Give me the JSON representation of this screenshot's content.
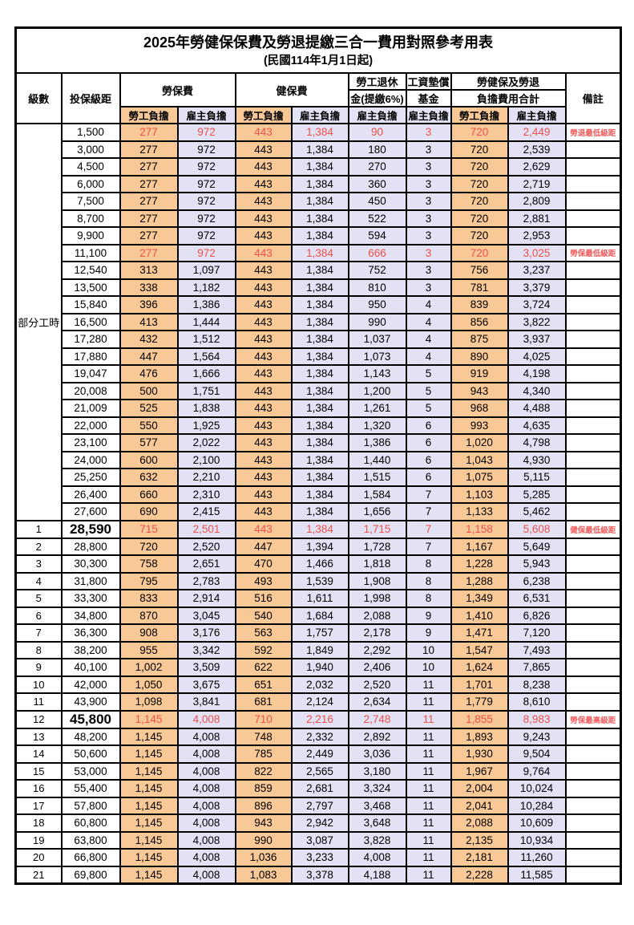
{
  "title": "2025年勞健保保費及勞退提繳三合一費用對照參考用表",
  "subtitle": "(民國114年1月1日起)",
  "columns": {
    "level": "級數",
    "bracket": "投保級距",
    "labor_insurance": "勞保費",
    "health_insurance": "健保費",
    "pension_line1": "勞工退休",
    "pension_line2": "金(提繳6%)",
    "wage_fund_line1": "工資墊償",
    "wage_fund_line2": "基金",
    "total_line1": "勞健保及勞退",
    "total_line2": "負擔費用合計",
    "employee_label": "勞工負擔",
    "employer_label": "雇主負擔",
    "note": "備註"
  },
  "part_time_label": "部分工時",
  "part_time_rowspan": 23,
  "colors": {
    "employee_bg": "#F8C896",
    "employer_bg": "#E2E2F4",
    "highlight_red": "#EE504B",
    "note_red": "#F25B5B"
  },
  "rows": [
    {
      "level": "",
      "bracket": "1,500",
      "values": [
        "277",
        "972",
        "443",
        "1,384",
        "90",
        "3",
        "720",
        "2,449"
      ],
      "note": "勞退最低級距",
      "red": true,
      "big": false
    },
    {
      "level": "",
      "bracket": "3,000",
      "values": [
        "277",
        "972",
        "443",
        "1,384",
        "180",
        "3",
        "720",
        "2,539"
      ],
      "note": "",
      "red": false,
      "big": false
    },
    {
      "level": "",
      "bracket": "4,500",
      "values": [
        "277",
        "972",
        "443",
        "1,384",
        "270",
        "3",
        "720",
        "2,629"
      ],
      "note": "",
      "red": false,
      "big": false
    },
    {
      "level": "",
      "bracket": "6,000",
      "values": [
        "277",
        "972",
        "443",
        "1,384",
        "360",
        "3",
        "720",
        "2,719"
      ],
      "note": "",
      "red": false,
      "big": false
    },
    {
      "level": "",
      "bracket": "7,500",
      "values": [
        "277",
        "972",
        "443",
        "1,384",
        "450",
        "3",
        "720",
        "2,809"
      ],
      "note": "",
      "red": false,
      "big": false
    },
    {
      "level": "",
      "bracket": "8,700",
      "values": [
        "277",
        "972",
        "443",
        "1,384",
        "522",
        "3",
        "720",
        "2,881"
      ],
      "note": "",
      "red": false,
      "big": false
    },
    {
      "level": "",
      "bracket": "9,900",
      "values": [
        "277",
        "972",
        "443",
        "1,384",
        "594",
        "3",
        "720",
        "2,953"
      ],
      "note": "",
      "red": false,
      "big": false
    },
    {
      "level": "",
      "bracket": "11,100",
      "values": [
        "277",
        "972",
        "443",
        "1,384",
        "666",
        "3",
        "720",
        "3,025"
      ],
      "note": "勞保最低級距",
      "red": true,
      "big": false
    },
    {
      "level": "",
      "bracket": "12,540",
      "values": [
        "313",
        "1,097",
        "443",
        "1,384",
        "752",
        "3",
        "756",
        "3,237"
      ],
      "note": "",
      "red": false,
      "big": false
    },
    {
      "level": "",
      "bracket": "13,500",
      "values": [
        "338",
        "1,182",
        "443",
        "1,384",
        "810",
        "3",
        "781",
        "3,379"
      ],
      "note": "",
      "red": false,
      "big": false
    },
    {
      "level": "",
      "bracket": "15,840",
      "values": [
        "396",
        "1,386",
        "443",
        "1,384",
        "950",
        "4",
        "839",
        "3,724"
      ],
      "note": "",
      "red": false,
      "big": false
    },
    {
      "level": "",
      "bracket": "16,500",
      "values": [
        "413",
        "1,444",
        "443",
        "1,384",
        "990",
        "4",
        "856",
        "3,822"
      ],
      "note": "",
      "red": false,
      "big": false
    },
    {
      "level": "",
      "bracket": "17,280",
      "values": [
        "432",
        "1,512",
        "443",
        "1,384",
        "1,037",
        "4",
        "875",
        "3,937"
      ],
      "note": "",
      "red": false,
      "big": false
    },
    {
      "level": "",
      "bracket": "17,880",
      "values": [
        "447",
        "1,564",
        "443",
        "1,384",
        "1,073",
        "4",
        "890",
        "4,025"
      ],
      "note": "",
      "red": false,
      "big": false
    },
    {
      "level": "",
      "bracket": "19,047",
      "values": [
        "476",
        "1,666",
        "443",
        "1,384",
        "1,143",
        "5",
        "919",
        "4,198"
      ],
      "note": "",
      "red": false,
      "big": false
    },
    {
      "level": "",
      "bracket": "20,008",
      "values": [
        "500",
        "1,751",
        "443",
        "1,384",
        "1,200",
        "5",
        "943",
        "4,340"
      ],
      "note": "",
      "red": false,
      "big": false
    },
    {
      "level": "",
      "bracket": "21,009",
      "values": [
        "525",
        "1,838",
        "443",
        "1,384",
        "1,261",
        "5",
        "968",
        "4,488"
      ],
      "note": "",
      "red": false,
      "big": false
    },
    {
      "level": "",
      "bracket": "22,000",
      "values": [
        "550",
        "1,925",
        "443",
        "1,384",
        "1,320",
        "6",
        "993",
        "4,635"
      ],
      "note": "",
      "red": false,
      "big": false
    },
    {
      "level": "",
      "bracket": "23,100",
      "values": [
        "577",
        "2,022",
        "443",
        "1,384",
        "1,386",
        "6",
        "1,020",
        "4,798"
      ],
      "note": "",
      "red": false,
      "big": false
    },
    {
      "level": "",
      "bracket": "24,000",
      "values": [
        "600",
        "2,100",
        "443",
        "1,384",
        "1,440",
        "6",
        "1,043",
        "4,930"
      ],
      "note": "",
      "red": false,
      "big": false
    },
    {
      "level": "",
      "bracket": "25,250",
      "values": [
        "632",
        "2,210",
        "443",
        "1,384",
        "1,515",
        "6",
        "1,075",
        "5,115"
      ],
      "note": "",
      "red": false,
      "big": false
    },
    {
      "level": "",
      "bracket": "26,400",
      "values": [
        "660",
        "2,310",
        "443",
        "1,384",
        "1,584",
        "7",
        "1,103",
        "5,285"
      ],
      "note": "",
      "red": false,
      "big": false
    },
    {
      "level": "",
      "bracket": "27,600",
      "values": [
        "690",
        "2,415",
        "443",
        "1,384",
        "1,656",
        "7",
        "1,133",
        "5,462"
      ],
      "note": "",
      "red": false,
      "big": false
    },
    {
      "level": "1",
      "bracket": "28,590",
      "values": [
        "715",
        "2,501",
        "443",
        "1,384",
        "1,715",
        "7",
        "1,158",
        "5,608"
      ],
      "note": "健保最低級距",
      "red": true,
      "big": true
    },
    {
      "level": "2",
      "bracket": "28,800",
      "values": [
        "720",
        "2,520",
        "447",
        "1,394",
        "1,728",
        "7",
        "1,167",
        "5,649"
      ],
      "note": "",
      "red": false,
      "big": false
    },
    {
      "level": "3",
      "bracket": "30,300",
      "values": [
        "758",
        "2,651",
        "470",
        "1,466",
        "1,818",
        "8",
        "1,228",
        "5,943"
      ],
      "note": "",
      "red": false,
      "big": false
    },
    {
      "level": "4",
      "bracket": "31,800",
      "values": [
        "795",
        "2,783",
        "493",
        "1,539",
        "1,908",
        "8",
        "1,288",
        "6,238"
      ],
      "note": "",
      "red": false,
      "big": false
    },
    {
      "level": "5",
      "bracket": "33,300",
      "values": [
        "833",
        "2,914",
        "516",
        "1,611",
        "1,998",
        "8",
        "1,349",
        "6,531"
      ],
      "note": "",
      "red": false,
      "big": false
    },
    {
      "level": "6",
      "bracket": "34,800",
      "values": [
        "870",
        "3,045",
        "540",
        "1,684",
        "2,088",
        "9",
        "1,410",
        "6,826"
      ],
      "note": "",
      "red": false,
      "big": false
    },
    {
      "level": "7",
      "bracket": "36,300",
      "values": [
        "908",
        "3,176",
        "563",
        "1,757",
        "2,178",
        "9",
        "1,471",
        "7,120"
      ],
      "note": "",
      "red": false,
      "big": false
    },
    {
      "level": "8",
      "bracket": "38,200",
      "values": [
        "955",
        "3,342",
        "592",
        "1,849",
        "2,292",
        "10",
        "1,547",
        "7,493"
      ],
      "note": "",
      "red": false,
      "big": false
    },
    {
      "level": "9",
      "bracket": "40,100",
      "values": [
        "1,002",
        "3,509",
        "622",
        "1,940",
        "2,406",
        "10",
        "1,624",
        "7,865"
      ],
      "note": "",
      "red": false,
      "big": false
    },
    {
      "level": "10",
      "bracket": "42,000",
      "values": [
        "1,050",
        "3,675",
        "651",
        "2,032",
        "2,520",
        "11",
        "1,701",
        "8,238"
      ],
      "note": "",
      "red": false,
      "big": false
    },
    {
      "level": "11",
      "bracket": "43,900",
      "values": [
        "1,098",
        "3,841",
        "681",
        "2,124",
        "2,634",
        "11",
        "1,779",
        "8,610"
      ],
      "note": "",
      "red": false,
      "big": false
    },
    {
      "level": "12",
      "bracket": "45,800",
      "values": [
        "1,145",
        "4,008",
        "710",
        "2,216",
        "2,748",
        "11",
        "1,855",
        "8,983"
      ],
      "note": "勞保最高級距",
      "red": true,
      "big": true
    },
    {
      "level": "13",
      "bracket": "48,200",
      "values": [
        "1,145",
        "4,008",
        "748",
        "2,332",
        "2,892",
        "11",
        "1,893",
        "9,243"
      ],
      "note": "",
      "red": false,
      "big": false
    },
    {
      "level": "14",
      "bracket": "50,600",
      "values": [
        "1,145",
        "4,008",
        "785",
        "2,449",
        "3,036",
        "11",
        "1,930",
        "9,504"
      ],
      "note": "",
      "red": false,
      "big": false
    },
    {
      "level": "15",
      "bracket": "53,000",
      "values": [
        "1,145",
        "4,008",
        "822",
        "2,565",
        "3,180",
        "11",
        "1,967",
        "9,764"
      ],
      "note": "",
      "red": false,
      "big": false
    },
    {
      "level": "16",
      "bracket": "55,400",
      "values": [
        "1,145",
        "4,008",
        "859",
        "2,681",
        "3,324",
        "11",
        "2,004",
        "10,024"
      ],
      "note": "",
      "red": false,
      "big": false
    },
    {
      "level": "17",
      "bracket": "57,800",
      "values": [
        "1,145",
        "4,008",
        "896",
        "2,797",
        "3,468",
        "11",
        "2,041",
        "10,284"
      ],
      "note": "",
      "red": false,
      "big": false
    },
    {
      "level": "18",
      "bracket": "60,800",
      "values": [
        "1,145",
        "4,008",
        "943",
        "2,942",
        "3,648",
        "11",
        "2,088",
        "10,609"
      ],
      "note": "",
      "red": false,
      "big": false
    },
    {
      "level": "19",
      "bracket": "63,800",
      "values": [
        "1,145",
        "4,008",
        "990",
        "3,087",
        "3,828",
        "11",
        "2,135",
        "10,934"
      ],
      "note": "",
      "red": false,
      "big": false
    },
    {
      "level": "20",
      "bracket": "66,800",
      "values": [
        "1,145",
        "4,008",
        "1,036",
        "3,233",
        "4,008",
        "11",
        "2,181",
        "11,260"
      ],
      "note": "",
      "red": false,
      "big": false
    },
    {
      "level": "21",
      "bracket": "69,800",
      "values": [
        "1,145",
        "4,008",
        "1,083",
        "3,378",
        "4,188",
        "11",
        "2,228",
        "11,585"
      ],
      "note": "",
      "red": false,
      "big": false
    }
  ],
  "value_column_kinds": [
    "emp",
    "er",
    "emp",
    "er",
    "er",
    "er",
    "emp",
    "er"
  ],
  "value_column_names": [
    "labor-employee",
    "labor-employer",
    "health-employee",
    "health-employer",
    "pension-employer",
    "wagefund-employer",
    "total-employee",
    "total-employer"
  ]
}
